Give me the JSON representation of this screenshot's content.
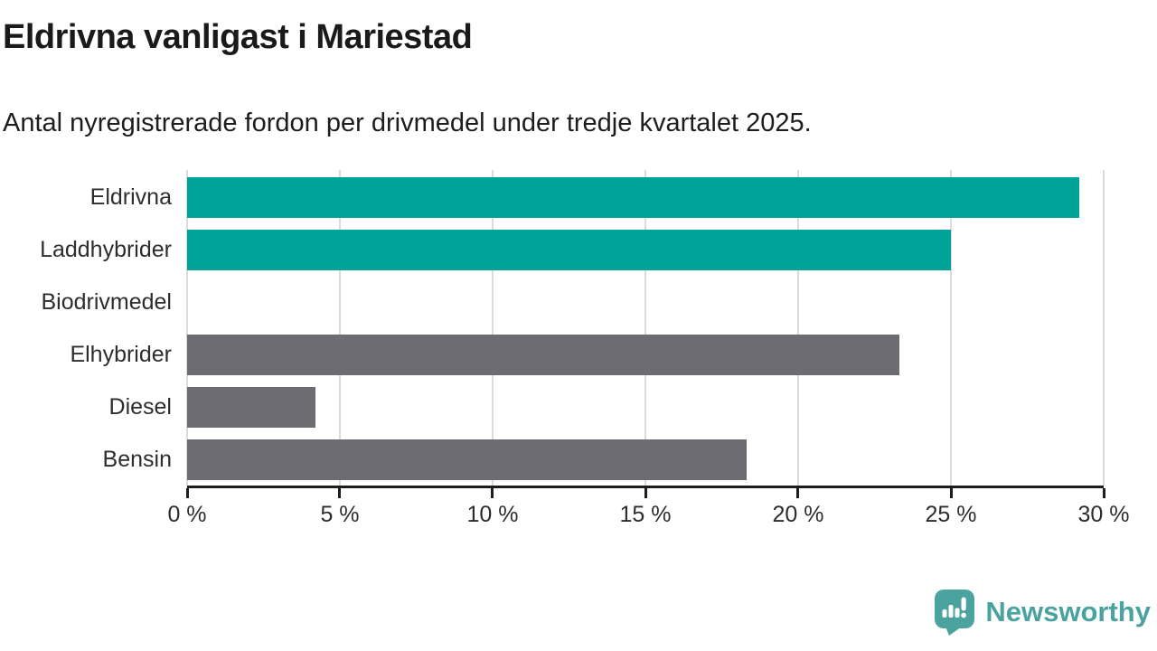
{
  "header": {
    "title": "Eldrivna vanligast i Mariestad",
    "subtitle": "Antal nyregistrerade fordon per drivmedel under tredje kvartalet 2025."
  },
  "chart_data": {
    "type": "bar",
    "orientation": "horizontal",
    "title": "Eldrivna vanligast i Mariestad",
    "subtitle": "Antal nyregistrerade fordon per drivmedel under tredje kvartalet 2025.",
    "categories": [
      "Eldrivna",
      "Laddhybrider",
      "Biodrivmedel",
      "Elhybrider",
      "Diesel",
      "Bensin"
    ],
    "values": [
      29.2,
      25.0,
      0.0,
      23.3,
      4.2,
      18.3
    ],
    "unit": "%",
    "xlabel": "",
    "ylabel": "",
    "xlim": [
      0,
      30
    ],
    "x_tick_values": [
      0,
      5,
      10,
      15,
      20,
      25,
      30
    ],
    "x_tick_labels": [
      "0 %",
      "5 %",
      "10 %",
      "15 %",
      "20 %",
      "25 %",
      "30 %"
    ],
    "grid": "vertical-gridlines-behind-bars",
    "legend": "none",
    "bar_colors": [
      "#00a398",
      "#00a398",
      "#6c6c72",
      "#6c6c72",
      "#6c6c72",
      "#6c6c72"
    ],
    "highlight_color": "#00a398",
    "default_color": "#6c6c72",
    "gridline_color": "#dbdbdb",
    "axis_color": "#1d1d1d"
  },
  "footer": {
    "brand": "Newsworthy",
    "brand_color": "#4aa39e",
    "logo_icon": "newsworthy-speech-bubble-chart-icon"
  }
}
